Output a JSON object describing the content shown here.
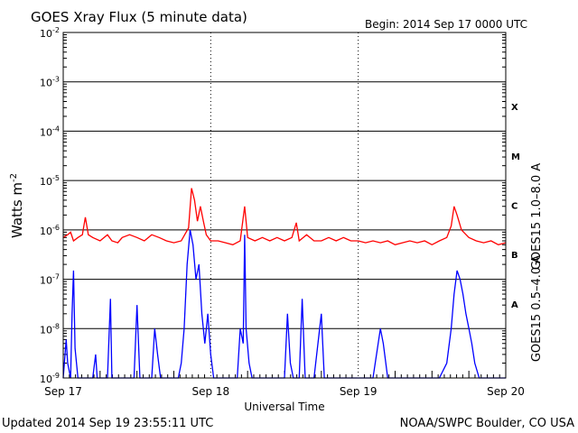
{
  "header": {
    "title": "GOES Xray Flux (5 minute data)",
    "begin": "Begin:  2014 Sep 17 0000 UTC"
  },
  "footer": {
    "updated": "Updated 2014 Sep 19 23:55:11 UTC",
    "credit": "NOAA/SWPC Boulder, CO USA"
  },
  "chart_data": {
    "type": "line",
    "title": "GOES Xray Flux (5 minute data)",
    "xlabel": "Universal Time",
    "ylabel_main": "Watts m",
    "ylabel_sup": "-2",
    "yscale": "log",
    "ylim": [
      1e-09,
      0.01
    ],
    "xlim": [
      0,
      3
    ],
    "grid": "horizontal at each decade",
    "y_ticks": [
      {
        "base": "10",
        "exp": "-9",
        "value": 1e-09
      },
      {
        "base": "10",
        "exp": "-8",
        "value": 1e-08
      },
      {
        "base": "10",
        "exp": "-7",
        "value": 1e-07
      },
      {
        "base": "10",
        "exp": "-6",
        "value": 1e-06
      },
      {
        "base": "10",
        "exp": "-5",
        "value": 1e-05
      },
      {
        "base": "10",
        "exp": "-4",
        "value": 0.0001
      },
      {
        "base": "10",
        "exp": "-3",
        "value": 0.001
      },
      {
        "base": "10",
        "exp": "-2",
        "value": 0.01
      }
    ],
    "x_ticks": [
      {
        "label": "Sep 17",
        "day": 0
      },
      {
        "label": "Sep 18",
        "day": 1
      },
      {
        "label": "Sep 19",
        "day": 2
      },
      {
        "label": "Sep 20",
        "day": 3
      }
    ],
    "flare_classes": [
      {
        "label": "X",
        "min": 0.0001
      },
      {
        "label": "M",
        "min": 1e-05
      },
      {
        "label": "C",
        "min": 1e-06
      },
      {
        "label": "B",
        "min": 1e-07
      },
      {
        "label": "A",
        "min": 1e-08
      }
    ],
    "series": [
      {
        "name": "GOES15 1.0–8.0 A",
        "color": "#ff0000",
        "points": [
          [
            0.0,
            7e-07
          ],
          [
            0.03,
            8e-07
          ],
          [
            0.05,
            9e-07
          ],
          [
            0.07,
            6e-07
          ],
          [
            0.1,
            7e-07
          ],
          [
            0.13,
            8e-07
          ],
          [
            0.15,
            1.8e-06
          ],
          [
            0.17,
            8e-07
          ],
          [
            0.2,
            7e-07
          ],
          [
            0.25,
            6e-07
          ],
          [
            0.3,
            8e-07
          ],
          [
            0.33,
            6e-07
          ],
          [
            0.37,
            5.5e-07
          ],
          [
            0.4,
            7e-07
          ],
          [
            0.45,
            8e-07
          ],
          [
            0.5,
            7e-07
          ],
          [
            0.55,
            6e-07
          ],
          [
            0.6,
            8e-07
          ],
          [
            0.65,
            7e-07
          ],
          [
            0.7,
            6e-07
          ],
          [
            0.75,
            5.5e-07
          ],
          [
            0.8,
            6e-07
          ],
          [
            0.85,
            1.1e-06
          ],
          [
            0.87,
            7e-06
          ],
          [
            0.89,
            4e-06
          ],
          [
            0.91,
            1.5e-06
          ],
          [
            0.93,
            3e-06
          ],
          [
            0.95,
            1.5e-06
          ],
          [
            0.97,
            8e-07
          ],
          [
            1.0,
            6e-07
          ],
          [
            1.05,
            6e-07
          ],
          [
            1.1,
            5.5e-07
          ],
          [
            1.15,
            5e-07
          ],
          [
            1.2,
            6e-07
          ],
          [
            1.23,
            3e-06
          ],
          [
            1.25,
            7e-07
          ],
          [
            1.3,
            6e-07
          ],
          [
            1.35,
            7e-07
          ],
          [
            1.4,
            6e-07
          ],
          [
            1.45,
            7e-07
          ],
          [
            1.5,
            6e-07
          ],
          [
            1.55,
            7e-07
          ],
          [
            1.58,
            1.4e-06
          ],
          [
            1.6,
            6e-07
          ],
          [
            1.65,
            8e-07
          ],
          [
            1.7,
            6e-07
          ],
          [
            1.75,
            6e-07
          ],
          [
            1.8,
            7e-07
          ],
          [
            1.85,
            6e-07
          ],
          [
            1.9,
            7e-07
          ],
          [
            1.95,
            6e-07
          ],
          [
            2.0,
            6e-07
          ],
          [
            2.05,
            5.5e-07
          ],
          [
            2.1,
            6e-07
          ],
          [
            2.15,
            5.5e-07
          ],
          [
            2.2,
            6e-07
          ],
          [
            2.25,
            5e-07
          ],
          [
            2.3,
            5.5e-07
          ],
          [
            2.35,
            6e-07
          ],
          [
            2.4,
            5.5e-07
          ],
          [
            2.45,
            6e-07
          ],
          [
            2.5,
            5e-07
          ],
          [
            2.55,
            6e-07
          ],
          [
            2.6,
            7e-07
          ],
          [
            2.63,
            1.2e-06
          ],
          [
            2.65,
            3e-06
          ],
          [
            2.67,
            2e-06
          ],
          [
            2.7,
            1e-06
          ],
          [
            2.75,
            7e-07
          ],
          [
            2.8,
            6e-07
          ],
          [
            2.85,
            5.5e-07
          ],
          [
            2.9,
            6e-07
          ],
          [
            2.95,
            5e-07
          ],
          [
            3.0,
            5.5e-07
          ]
        ]
      },
      {
        "name": "GOES15 0.5–4.0 A",
        "color": "#0000ff",
        "points": [
          [
            0.0,
            1e-09
          ],
          [
            0.02,
            6e-09
          ],
          [
            0.03,
            2e-09
          ],
          [
            0.05,
            1e-09
          ],
          [
            0.06,
            2e-08
          ],
          [
            0.07,
            1.5e-07
          ],
          [
            0.08,
            4e-09
          ],
          [
            0.1,
            1e-09
          ],
          [
            0.12,
            1e-09
          ],
          [
            0.15,
            1e-09
          ],
          [
            0.18,
            1e-09
          ],
          [
            0.2,
            1e-09
          ],
          [
            0.22,
            3e-09
          ],
          [
            0.23,
            1e-09
          ],
          [
            0.25,
            1e-09
          ],
          [
            0.27,
            1e-09
          ],
          [
            0.3,
            1e-09
          ],
          [
            0.32,
            4e-08
          ],
          [
            0.33,
            1e-09
          ],
          [
            0.35,
            1e-09
          ],
          [
            0.37,
            1e-09
          ],
          [
            0.4,
            1e-09
          ],
          [
            0.45,
            1e-09
          ],
          [
            0.48,
            1e-09
          ],
          [
            0.5,
            3e-08
          ],
          [
            0.52,
            1e-09
          ],
          [
            0.55,
            1e-09
          ],
          [
            0.58,
            1e-09
          ],
          [
            0.6,
            1e-09
          ],
          [
            0.62,
            1e-08
          ],
          [
            0.64,
            3e-09
          ],
          [
            0.66,
            1e-09
          ],
          [
            0.7,
            1e-09
          ],
          [
            0.75,
            1e-09
          ],
          [
            0.78,
            1e-09
          ],
          [
            0.8,
            2e-09
          ],
          [
            0.82,
            1e-08
          ],
          [
            0.84,
            2e-07
          ],
          [
            0.86,
            1e-06
          ],
          [
            0.88,
            5e-07
          ],
          [
            0.9,
            1e-07
          ],
          [
            0.92,
            2e-07
          ],
          [
            0.94,
            2e-08
          ],
          [
            0.96,
            5e-09
          ],
          [
            0.98,
            2e-08
          ],
          [
            1.0,
            3e-09
          ],
          [
            1.02,
            1e-09
          ],
          [
            1.05,
            1e-09
          ],
          [
            1.08,
            1e-09
          ],
          [
            1.1,
            1e-09
          ],
          [
            1.12,
            1e-09
          ],
          [
            1.15,
            1e-09
          ],
          [
            1.18,
            1e-09
          ],
          [
            1.2,
            1e-08
          ],
          [
            1.22,
            5e-09
          ],
          [
            1.23,
            8e-07
          ],
          [
            1.24,
            1e-08
          ],
          [
            1.26,
            2e-09
          ],
          [
            1.28,
            1e-09
          ],
          [
            1.3,
            1e-09
          ],
          [
            1.35,
            1e-09
          ],
          [
            1.4,
            1e-09
          ],
          [
            1.45,
            1e-09
          ],
          [
            1.5,
            1e-09
          ],
          [
            1.52,
            2e-08
          ],
          [
            1.54,
            2e-09
          ],
          [
            1.56,
            1e-09
          ],
          [
            1.6,
            1e-09
          ],
          [
            1.62,
            4e-08
          ],
          [
            1.64,
            1e-09
          ],
          [
            1.67,
            1e-09
          ],
          [
            1.7,
            1e-09
          ],
          [
            1.75,
            2e-08
          ],
          [
            1.77,
            1e-09
          ],
          [
            1.8,
            1e-09
          ],
          [
            1.85,
            1e-09
          ],
          [
            1.9,
            1e-09
          ],
          [
            1.95,
            1e-09
          ],
          [
            2.0,
            1e-09
          ],
          [
            2.05,
            1e-09
          ],
          [
            2.1,
            1e-09
          ],
          [
            2.15,
            1e-08
          ],
          [
            2.17,
            5e-09
          ],
          [
            2.2,
            1e-09
          ],
          [
            2.25,
            1e-09
          ],
          [
            2.3,
            1e-09
          ],
          [
            2.35,
            1e-09
          ],
          [
            2.4,
            1e-09
          ],
          [
            2.45,
            1e-09
          ],
          [
            2.5,
            1e-09
          ],
          [
            2.55,
            1e-09
          ],
          [
            2.6,
            2e-09
          ],
          [
            2.63,
            1e-08
          ],
          [
            2.65,
            5e-08
          ],
          [
            2.67,
            1.5e-07
          ],
          [
            2.69,
            1e-07
          ],
          [
            2.71,
            5e-08
          ],
          [
            2.73,
            2e-08
          ],
          [
            2.75,
            1e-08
          ],
          [
            2.77,
            5e-09
          ],
          [
            2.79,
            2e-09
          ],
          [
            2.82,
            1e-09
          ],
          [
            2.85,
            1e-09
          ],
          [
            2.9,
            1e-09
          ],
          [
            2.95,
            1e-09
          ],
          [
            3.0,
            1e-09
          ]
        ]
      }
    ]
  }
}
